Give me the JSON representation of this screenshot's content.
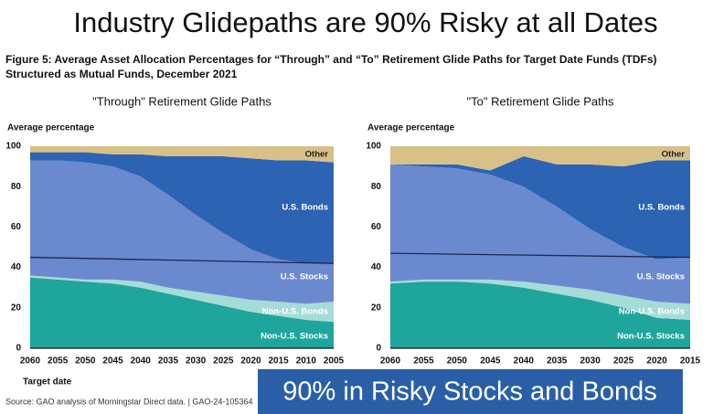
{
  "slide_title": "Industry Glidepaths are 90% Risky at all Dates",
  "caption_lines": [
    "Figure 5: Average Asset Allocation Percentages for “Through” and “To” Retirement Glide Paths for Target Date Funds (TDFs)",
    "Structured as Mutual Funds, December 2021"
  ],
  "source": "Source: GAO analysis of Morningstar Direct data.  |  GAO-24-105364",
  "callout": "90% in Risky Stocks and Bonds",
  "chart_data": [
    {
      "type": "stacked-area",
      "title": "\"Through\" Retirement Glide Paths",
      "ylabel": "Average percentage",
      "xlabel": "Target date",
      "categories": [
        "2060",
        "2055",
        "2050",
        "2045",
        "2040",
        "2035",
        "2030",
        "2025",
        "2020",
        "2015",
        "2010",
        "2005"
      ],
      "ylim": [
        0,
        100
      ],
      "yticks": [
        0,
        20,
        40,
        60,
        80,
        100
      ],
      "series": [
        {
          "name": "Non-U.S. Stocks",
          "color": "#1ea59c",
          "values": [
            35,
            34,
            33,
            32,
            30,
            27,
            24,
            21,
            18,
            16,
            14,
            13
          ]
        },
        {
          "name": "Non-U.S. Bonds",
          "color": "#a6dcd7",
          "values": [
            1,
            1,
            1,
            2,
            3,
            3,
            4,
            5,
            6,
            7,
            8,
            10
          ]
        },
        {
          "name": "U.S. Stocks",
          "color": "#6b89cf",
          "values": [
            57,
            58,
            58,
            56,
            52,
            46,
            38,
            31,
            25,
            21,
            20,
            19
          ]
        },
        {
          "name": "U.S. Bonds",
          "color": "#2c63b3",
          "values": [
            4,
            4,
            5,
            6,
            11,
            19,
            29,
            38,
            45,
            49,
            51,
            50
          ]
        },
        {
          "name": "Other",
          "color": "#d8c088",
          "values": [
            3,
            3,
            3,
            4,
            4,
            5,
            5,
            5,
            6,
            7,
            7,
            8
          ]
        }
      ],
      "overlay_line": [
        45,
        42
      ]
    },
    {
      "type": "stacked-area",
      "title": "\"To\" Retirement Glide Paths",
      "ylabel": "Average percentage",
      "categories": [
        "2060",
        "2055",
        "2050",
        "2045",
        "2040",
        "2035",
        "2030",
        "2025",
        "2020",
        "2015"
      ],
      "ylim": [
        0,
        100
      ],
      "yticks": [
        0,
        20,
        40,
        60,
        80,
        100
      ],
      "series": [
        {
          "name": "Non-U.S. Stocks",
          "color": "#1ea59c",
          "values": [
            32,
            33,
            33,
            32,
            30,
            27,
            24,
            20,
            15,
            14
          ]
        },
        {
          "name": "Non-U.S. Bonds",
          "color": "#a6dcd7",
          "values": [
            1,
            1,
            1,
            2,
            3,
            4,
            5,
            6,
            8,
            8
          ]
        },
        {
          "name": "U.S. Stocks",
          "color": "#6b89cf",
          "values": [
            58,
            56,
            55,
            52,
            47,
            39,
            30,
            24,
            21,
            23
          ]
        },
        {
          "name": "U.S. Bonds",
          "color": "#2c63b3",
          "values": [
            0,
            1,
            2,
            2,
            15,
            21,
            32,
            40,
            49,
            48
          ]
        },
        {
          "name": "Other",
          "color": "#d8c088",
          "values": [
            9,
            9,
            9,
            12,
            5,
            9,
            9,
            10,
            7,
            7
          ]
        }
      ],
      "overlay_line": [
        47,
        45
      ]
    }
  ]
}
